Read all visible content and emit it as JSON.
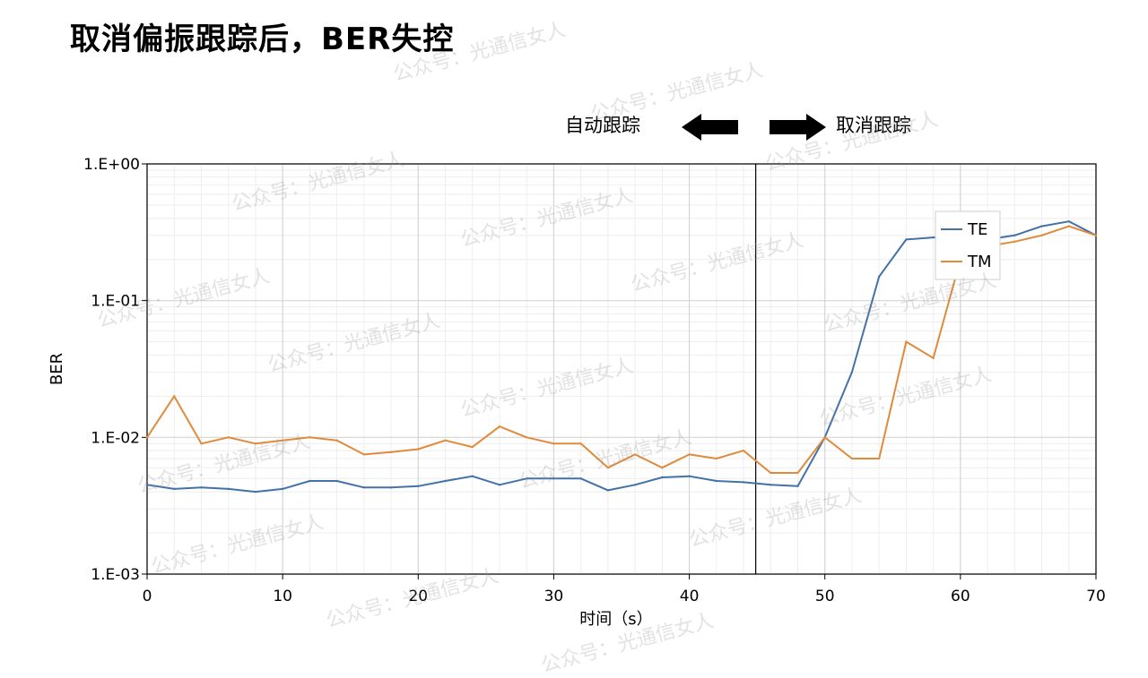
{
  "slide": {
    "title": "取消偏振跟踪后，BER失控",
    "annotation_left": "自动跟踪",
    "annotation_right": "取消跟踪",
    "watermark": "公众号：光通信女人"
  },
  "chart_data": {
    "type": "line",
    "xlabel": "时间（s）",
    "ylabel": "BER",
    "xlim": [
      0,
      70
    ],
    "x_ticks": [
      0,
      10,
      20,
      30,
      40,
      50,
      60,
      70
    ],
    "x_tick_labels": [
      "0",
      "10",
      "20",
      "30",
      "40",
      "50",
      "60",
      "70"
    ],
    "ylim": [
      0.001,
      1
    ],
    "y_scale": "log",
    "y_ticks": [
      0.001,
      0.01,
      0.1,
      1
    ],
    "y_tick_labels": [
      "1.E-03",
      "1.E-02",
      "1.E-01",
      "1.E+00"
    ],
    "grid": true,
    "legend_placement": "top-right",
    "vertical_marker_x": 44.9,
    "x": [
      0,
      2,
      4,
      6,
      8,
      10,
      12,
      14,
      16,
      18,
      20,
      22,
      24,
      26,
      28,
      30,
      32,
      34,
      36,
      38,
      40,
      42,
      44,
      46,
      48,
      50,
      52,
      54,
      56,
      58,
      60,
      62,
      64,
      66,
      68,
      70
    ],
    "series": [
      {
        "name": "TE",
        "color": "#4472a8",
        "values": [
          0.0045,
          0.0042,
          0.0043,
          0.0042,
          0.004,
          0.0042,
          0.0048,
          0.0048,
          0.0043,
          0.0043,
          0.0044,
          0.0048,
          0.0052,
          0.0045,
          0.005,
          0.005,
          0.005,
          0.0041,
          0.0045,
          0.0051,
          0.0052,
          0.0048,
          0.0047,
          0.0045,
          0.0044,
          0.01,
          0.03,
          0.15,
          0.28,
          0.29,
          0.29,
          0.28,
          0.3,
          0.35,
          0.38,
          0.3
        ]
      },
      {
        "name": "TM",
        "color": "#e08a3c",
        "values": [
          0.01,
          0.02,
          0.009,
          0.01,
          0.009,
          0.0095,
          0.01,
          0.0095,
          0.0075,
          0.0078,
          0.0082,
          0.0095,
          0.0085,
          0.012,
          0.01,
          0.009,
          0.009,
          0.006,
          0.0075,
          0.006,
          0.0075,
          0.007,
          0.008,
          0.0055,
          0.0055,
          0.01,
          0.007,
          0.007,
          0.05,
          0.038,
          0.2,
          0.25,
          0.27,
          0.3,
          0.35,
          0.3
        ]
      }
    ]
  }
}
